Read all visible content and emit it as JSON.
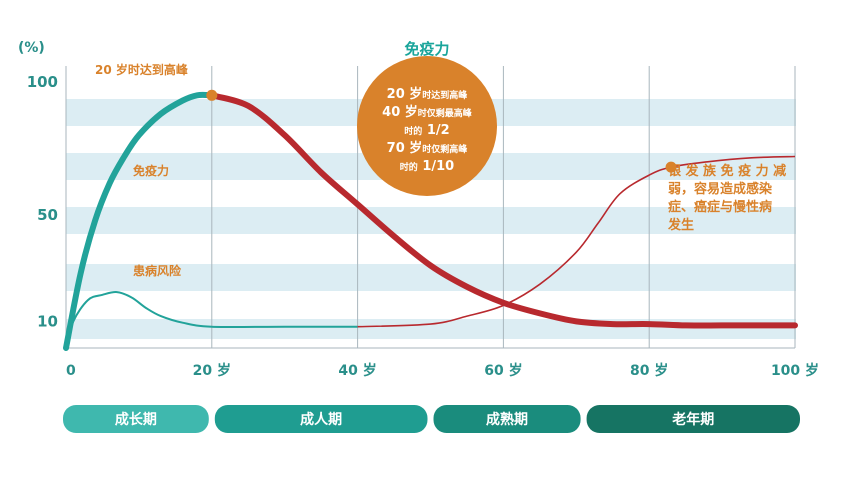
{
  "chart_data": {
    "type": "line",
    "unit_label": "(%)",
    "x_ticks": [
      "0",
      "20 岁",
      "40 岁",
      "60 岁",
      "80 岁",
      "100 岁"
    ],
    "y_ticks": [
      "100",
      "50",
      "10"
    ],
    "xlim": [
      0,
      100
    ],
    "ylim": [
      0,
      100
    ],
    "grid": "vertical lines at every 20 years, light blue horizontal bands",
    "series": [
      {
        "name": "免疫力",
        "x": [
          0,
          2,
          4,
          6,
          8,
          10,
          13,
          16,
          18,
          20,
          25,
          30,
          35,
          40,
          45,
          50,
          55,
          60,
          65,
          70,
          75,
          80,
          85,
          90,
          95,
          100
        ],
        "y": [
          0,
          28,
          48,
          62,
          72,
          80,
          88,
          93,
          95,
          95,
          91,
          80,
          66,
          54,
          42,
          31,
          23,
          17,
          13,
          10,
          9,
          9,
          8.5,
          8.5,
          8.5,
          8.5
        ]
      },
      {
        "name": "患病风险",
        "x": [
          0,
          1,
          3,
          5,
          7,
          9,
          11,
          13,
          16,
          20,
          30,
          40,
          50,
          55,
          60,
          65,
          70,
          73,
          76,
          80,
          83,
          88,
          94,
          100
        ],
        "y": [
          0,
          10,
          18,
          20,
          21,
          19,
          15,
          12,
          9.5,
          8,
          8,
          8,
          9,
          12,
          16,
          24,
          36,
          47,
          58,
          65,
          68,
          70,
          71.5,
          72
        ]
      }
    ],
    "annotations": {
      "peak_label": "20 岁时达到高峰",
      "immunity_label": "免疫力",
      "risk_label": "患病风险",
      "elderly_note": [
        "银 发 族 免 疫 力 减",
        "弱，容易造成感染",
        "症、癌症与慢性病",
        "发生"
      ]
    },
    "callout": {
      "title": "免疫力",
      "lines": [
        {
          "big": "20 岁",
          "small": "时达到高峰",
          "tail": ""
        },
        {
          "big": "40 岁",
          "small": "时仅剩最高峰",
          "tail": ""
        },
        {
          "big": "",
          "small": "时的",
          "tail": " 1/2"
        },
        {
          "big": "70 岁",
          "small": "时仅剩高峰",
          "tail": ""
        },
        {
          "big": "",
          "small": "时的",
          "tail": " 1/10"
        }
      ]
    },
    "phases": [
      {
        "label": "成长期",
        "from": 0,
        "to": 20
      },
      {
        "label": "成人期",
        "from": 20,
        "to": 50
      },
      {
        "label": "成熟期",
        "from": 50,
        "to": 71
      },
      {
        "label": "老年期",
        "from": 71,
        "to": 100
      }
    ]
  },
  "colors": {
    "teal": "#22a39a",
    "teal_light": "#3fb8b0",
    "red": "#b8292e",
    "orange": "#d9822b",
    "band": "#dcedf3",
    "grid": "#a9b6bd",
    "phase_colors": [
      "#3fb8ae",
      "#1f9d91",
      "#1a8c7d",
      "#167463"
    ]
  }
}
